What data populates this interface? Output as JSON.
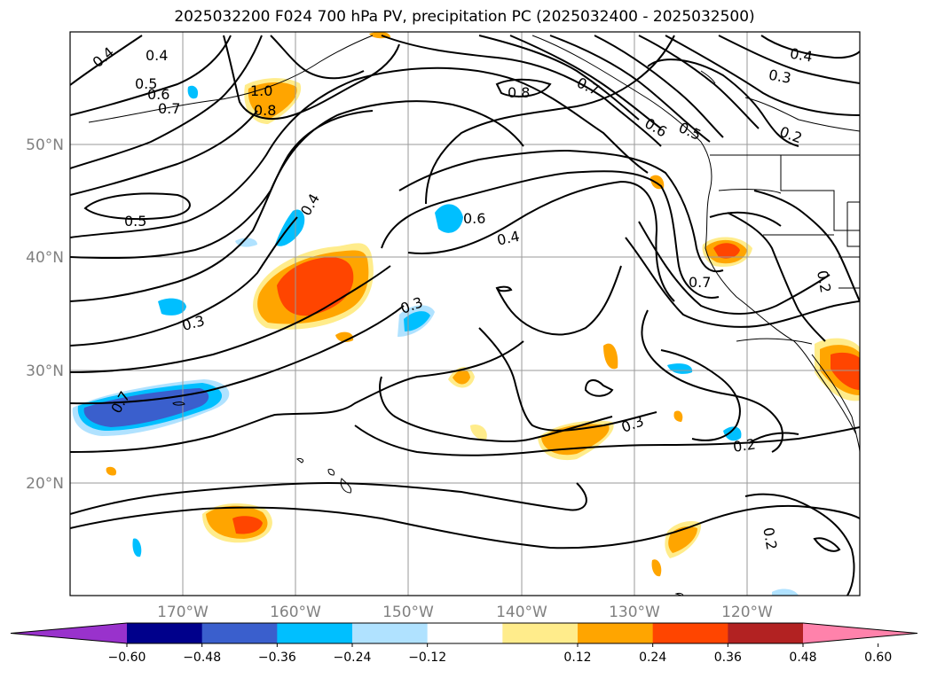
{
  "title": "2025032200 F024 700 hPa PV, precipitation PC (2025032400 - 2025032500)",
  "map": {
    "latitude_labels": [
      "50°N",
      "40°N",
      "30°N",
      "20°N"
    ],
    "longitude_labels": [
      "170°W",
      "160°W",
      "150°W",
      "140°W",
      "130°W",
      "120°W"
    ],
    "gridlines": true,
    "contour_labels": [
      {
        "text": "0.4"
      },
      {
        "text": "0.4"
      },
      {
        "text": "0.5"
      },
      {
        "text": "0.6"
      },
      {
        "text": "0.7"
      },
      {
        "text": "1.0"
      },
      {
        "text": "0.8"
      },
      {
        "text": "0.8"
      },
      {
        "text": "0.7"
      },
      {
        "text": "0.6"
      },
      {
        "text": "0.5"
      },
      {
        "text": "0.4"
      },
      {
        "text": "0.3"
      },
      {
        "text": "0.2"
      },
      {
        "text": "0.5"
      },
      {
        "text": "0.4"
      },
      {
        "text": "0.6"
      },
      {
        "text": "0.4"
      },
      {
        "text": "0.3"
      },
      {
        "text": "0.3"
      },
      {
        "text": "0.7"
      },
      {
        "text": "0.3"
      },
      {
        "text": "0.2"
      },
      {
        "text": "0.2"
      },
      {
        "text": "0.7"
      },
      {
        "text": "0.2"
      }
    ]
  },
  "colorbar": {
    "ticks": [
      "−0.60",
      "−0.48",
      "−0.36",
      "−0.24",
      "−0.12",
      "0.12",
      "0.24",
      "0.36",
      "0.48",
      "0.60"
    ],
    "colors": [
      "#9932cc",
      "#00008b",
      "#3a5fcd",
      "#00bfff",
      "#b0e2ff",
      "#ffffff",
      "#ffec8b",
      "#ffa500",
      "#ff4500",
      "#b22222",
      "#ff82ab"
    ]
  }
}
